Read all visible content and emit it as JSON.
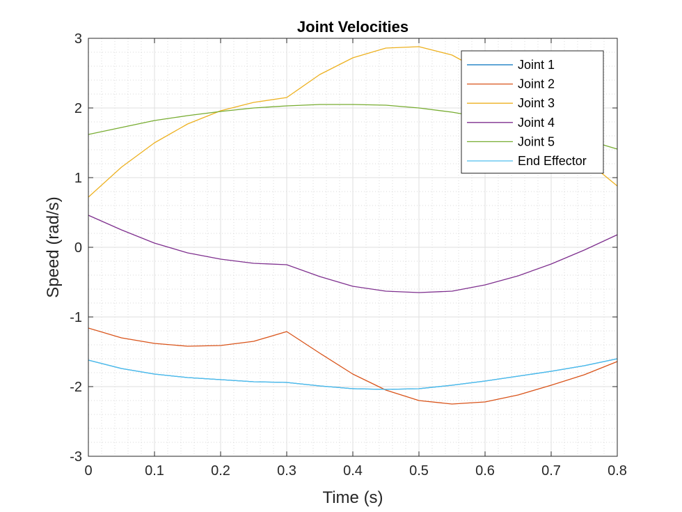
{
  "chart_data": {
    "type": "line",
    "title": "Joint Velocities",
    "xlabel": "Time (s)",
    "ylabel": "Speed (rad/s)",
    "xlim": [
      0,
      0.8
    ],
    "ylim": [
      -3,
      3
    ],
    "xticks": [
      0,
      0.1,
      0.2,
      0.3,
      0.4,
      0.5,
      0.6,
      0.7,
      0.8
    ],
    "xtick_labels": [
      "0",
      "0.1",
      "0.2",
      "0.3",
      "0.4",
      "0.5",
      "0.6",
      "0.7",
      "0.8"
    ],
    "yticks": [
      -3,
      -2,
      -1,
      0,
      1,
      2,
      3
    ],
    "ytick_labels": [
      "-3",
      "-2",
      "-1",
      "0",
      "1",
      "2",
      "3"
    ],
    "grid": "on",
    "minor_grid": "on",
    "legend_position": "top-right",
    "x": [
      0,
      0.05,
      0.1,
      0.15,
      0.2,
      0.25,
      0.3,
      0.35,
      0.4,
      0.45,
      0.5,
      0.55,
      0.6,
      0.65,
      0.7,
      0.75,
      0.8
    ],
    "series": [
      {
        "name": "Joint 1",
        "color": "#0072BD",
        "values": [
          -1.62,
          -1.74,
          -1.82,
          -1.87,
          -1.9,
          -1.93,
          -1.94,
          -1.99,
          -2.03,
          -2.04,
          -2.03,
          -1.98,
          -1.92,
          -1.85,
          -1.78,
          -1.7,
          -1.6
        ]
      },
      {
        "name": "Joint 2",
        "color": "#D95319",
        "values": [
          -1.16,
          -1.3,
          -1.38,
          -1.42,
          -1.41,
          -1.35,
          -1.21,
          -1.52,
          -1.82,
          -2.05,
          -2.2,
          -2.25,
          -2.22,
          -2.12,
          -1.98,
          -1.83,
          -1.64
        ]
      },
      {
        "name": "Joint 3",
        "color": "#EDB120",
        "values": [
          0.72,
          1.15,
          1.5,
          1.77,
          1.96,
          2.08,
          2.15,
          2.48,
          2.72,
          2.86,
          2.88,
          2.76,
          2.5,
          2.1,
          1.67,
          1.27,
          0.88
        ]
      },
      {
        "name": "Joint 4",
        "color": "#7E2F8E",
        "values": [
          0.46,
          0.25,
          0.06,
          -0.08,
          -0.17,
          -0.23,
          -0.25,
          -0.42,
          -0.56,
          -0.63,
          -0.65,
          -0.63,
          -0.54,
          -0.41,
          -0.24,
          -0.04,
          0.18
        ]
      },
      {
        "name": "Joint 5",
        "color": "#77AC30",
        "values": [
          1.62,
          1.72,
          1.82,
          1.89,
          1.95,
          2.0,
          2.03,
          2.05,
          2.05,
          2.04,
          2.0,
          1.94,
          1.86,
          1.78,
          1.67,
          1.55,
          1.41
        ]
      },
      {
        "name": "End Effector",
        "color": "#4DBEEE",
        "values": [
          -1.62,
          -1.74,
          -1.82,
          -1.87,
          -1.9,
          -1.93,
          -1.94,
          -1.99,
          -2.03,
          -2.04,
          -2.03,
          -1.98,
          -1.92,
          -1.85,
          -1.78,
          -1.7,
          -1.6
        ]
      }
    ]
  }
}
